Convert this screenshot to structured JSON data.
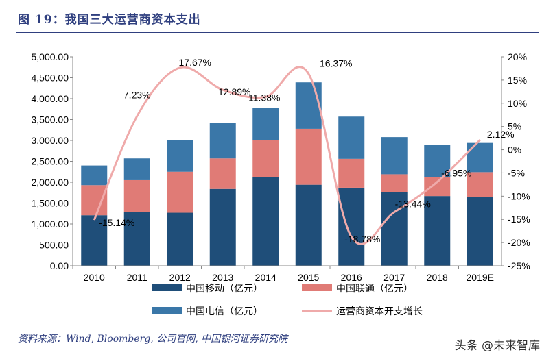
{
  "figure": {
    "title": "图 19：我国三大运营商资本支出",
    "source": "资料来源：Wind, Bloomberg, 公司官网, 中国银河证券研究院",
    "watermark": "头条 @未来智库"
  },
  "chart_data": {
    "type": "bar",
    "stacked": true,
    "categories": [
      "2010",
      "2011",
      "2012",
      "2013",
      "2014",
      "2015",
      "2016",
      "2017",
      "2018",
      "2019E"
    ],
    "series": [
      {
        "name": "中国移动（亿元）",
        "color": "#1f4e79",
        "values": [
          1210,
          1280,
          1270,
          1840,
          2130,
          1940,
          1870,
          1770,
          1670,
          1640
        ]
      },
      {
        "name": "中国联通（亿元）",
        "color": "#e07b76",
        "values": [
          720,
          770,
          980,
          730,
          870,
          1340,
          690,
          420,
          450,
          600
        ]
      },
      {
        "name": "中国电信（亿元）",
        "color": "#3a77a8",
        "values": [
          470,
          520,
          760,
          840,
          780,
          1110,
          1010,
          890,
          770,
          700
        ]
      }
    ],
    "line": {
      "name": "运营商资本开支增长",
      "color": "#efaaaa",
      "values": [
        -15.14,
        7.23,
        17.67,
        12.89,
        11.38,
        16.37,
        -18.78,
        -13.44,
        -6.95,
        2.12
      ],
      "labels": [
        "-15.14%",
        "7.23%",
        "17.67%",
        "12.89%",
        "11.38%",
        "16.37%",
        "-18.78%",
        "-13.44%",
        "-6.95%",
        "2.12%"
      ],
      "axis": "right"
    },
    "left_axis": {
      "ylim": [
        0,
        5000
      ],
      "ticks": [
        "0.00",
        "500.00",
        "1,000.00",
        "1,500.00",
        "2,000.00",
        "2,500.00",
        "3,000.00",
        "3,500.00",
        "4,000.00",
        "4,500.00",
        "5,000.00"
      ]
    },
    "right_axis": {
      "ylim": [
        -25,
        20
      ],
      "ticks": [
        "-25%",
        "-20%",
        "-15%",
        "-10%",
        "-5%",
        "0%",
        "5%",
        "10%",
        "15%",
        "20%"
      ]
    },
    "legend": {
      "placement": "bottom",
      "items": [
        "中国移动（亿元）",
        "中国联通（亿元）",
        "中国电信（亿元）",
        "运营商资本开支增长"
      ]
    },
    "grid": false
  }
}
